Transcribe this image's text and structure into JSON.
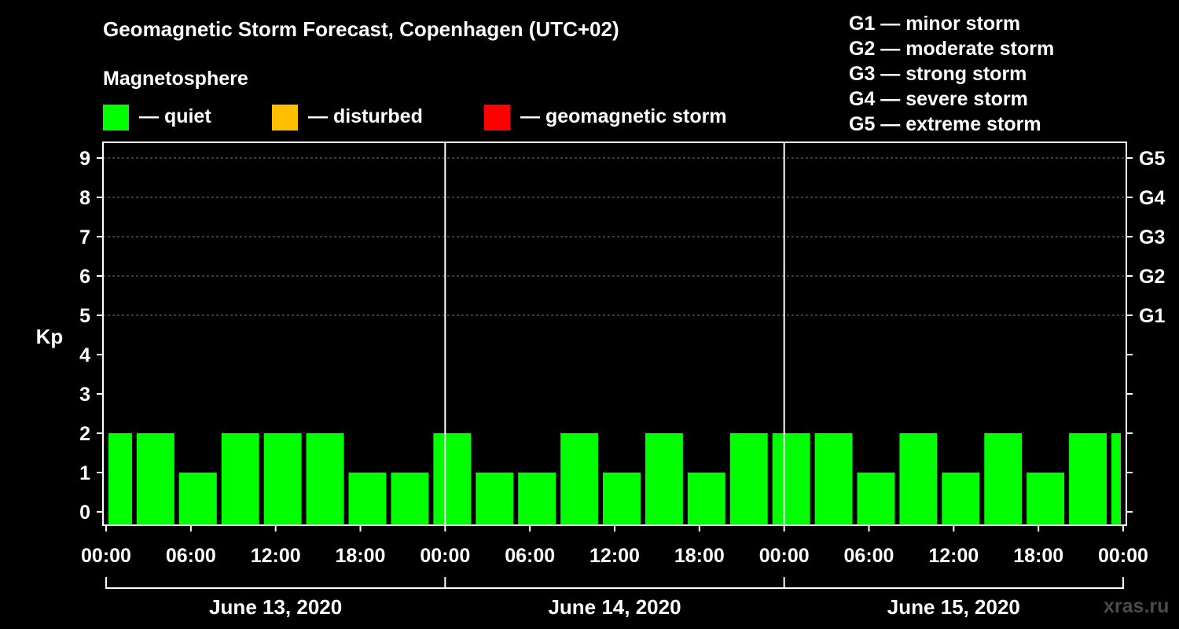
{
  "header": {
    "title": "Geomagnetic Storm Forecast, Copenhagen (UTC+02)",
    "subtitle": "Magnetosphere"
  },
  "legend": [
    {
      "label": "— quiet",
      "color": "#00ff00"
    },
    {
      "label": "— disturbed",
      "color": "#ffbf00"
    },
    {
      "label": "— geomagnetic storm",
      "color": "#ff0000"
    }
  ],
  "storm_scale": [
    "G1 — minor storm",
    "G2 — moderate storm",
    "G3 — strong storm",
    "G4 — severe storm",
    "G5 — extreme storm"
  ],
  "watermark": "xras.ru",
  "chart_data": {
    "type": "bar",
    "title": "Geomagnetic Storm Forecast, Copenhagen (UTC+02)",
    "ylabel": "Kp",
    "ylim": [
      0,
      9
    ],
    "yticks": [
      "0",
      "1",
      "2",
      "3",
      "4",
      "5",
      "6",
      "7",
      "8",
      "9"
    ],
    "right_ticks": [
      {
        "kp": 5,
        "label": "G1"
      },
      {
        "kp": 6,
        "label": "G2"
      },
      {
        "kp": 7,
        "label": "G3"
      },
      {
        "kp": 8,
        "label": "G4"
      },
      {
        "kp": 9,
        "label": "G5"
      }
    ],
    "xlim_hours": [
      0,
      72
    ],
    "xticks": [
      {
        "hour": 0,
        "label": "00:00"
      },
      {
        "hour": 6,
        "label": "06:00"
      },
      {
        "hour": 12,
        "label": "12:00"
      },
      {
        "hour": 18,
        "label": "18:00"
      },
      {
        "hour": 24,
        "label": "00:00"
      },
      {
        "hour": 30,
        "label": "06:00"
      },
      {
        "hour": 36,
        "label": "12:00"
      },
      {
        "hour": 42,
        "label": "18:00"
      },
      {
        "hour": 48,
        "label": "00:00"
      },
      {
        "hour": 54,
        "label": "06:00"
      },
      {
        "hour": 60,
        "label": "12:00"
      },
      {
        "hour": 66,
        "label": "18:00"
      },
      {
        "hour": 72,
        "label": "00:00"
      }
    ],
    "day_separators_hours": [
      24,
      48
    ],
    "days": [
      {
        "label": "June 13, 2020",
        "start": 0,
        "end": 24
      },
      {
        "label": "June 14, 2020",
        "start": 24,
        "end": 48
      },
      {
        "label": "June 15, 2020",
        "start": 48,
        "end": 72
      }
    ],
    "bar_color": "#00ff00",
    "bars": [
      {
        "start": 0,
        "end": 2,
        "kp": 2
      },
      {
        "start": 2,
        "end": 5,
        "kp": 2
      },
      {
        "start": 5,
        "end": 8,
        "kp": 1
      },
      {
        "start": 8,
        "end": 11,
        "kp": 2
      },
      {
        "start": 11,
        "end": 14,
        "kp": 2
      },
      {
        "start": 14,
        "end": 17,
        "kp": 2
      },
      {
        "start": 17,
        "end": 20,
        "kp": 1
      },
      {
        "start": 20,
        "end": 23,
        "kp": 1
      },
      {
        "start": 23,
        "end": 26,
        "kp": 2
      },
      {
        "start": 26,
        "end": 29,
        "kp": 1
      },
      {
        "start": 29,
        "end": 32,
        "kp": 1
      },
      {
        "start": 32,
        "end": 35,
        "kp": 2
      },
      {
        "start": 35,
        "end": 38,
        "kp": 1
      },
      {
        "start": 38,
        "end": 41,
        "kp": 2
      },
      {
        "start": 41,
        "end": 44,
        "kp": 1
      },
      {
        "start": 44,
        "end": 47,
        "kp": 2
      },
      {
        "start": 47,
        "end": 50,
        "kp": 2
      },
      {
        "start": 50,
        "end": 53,
        "kp": 2
      },
      {
        "start": 53,
        "end": 56,
        "kp": 1
      },
      {
        "start": 56,
        "end": 59,
        "kp": 2
      },
      {
        "start": 59,
        "end": 62,
        "kp": 1
      },
      {
        "start": 62,
        "end": 65,
        "kp": 2
      },
      {
        "start": 65,
        "end": 68,
        "kp": 1
      },
      {
        "start": 68,
        "end": 71,
        "kp": 2
      },
      {
        "start": 71,
        "end": 72,
        "kp": 2
      }
    ]
  }
}
